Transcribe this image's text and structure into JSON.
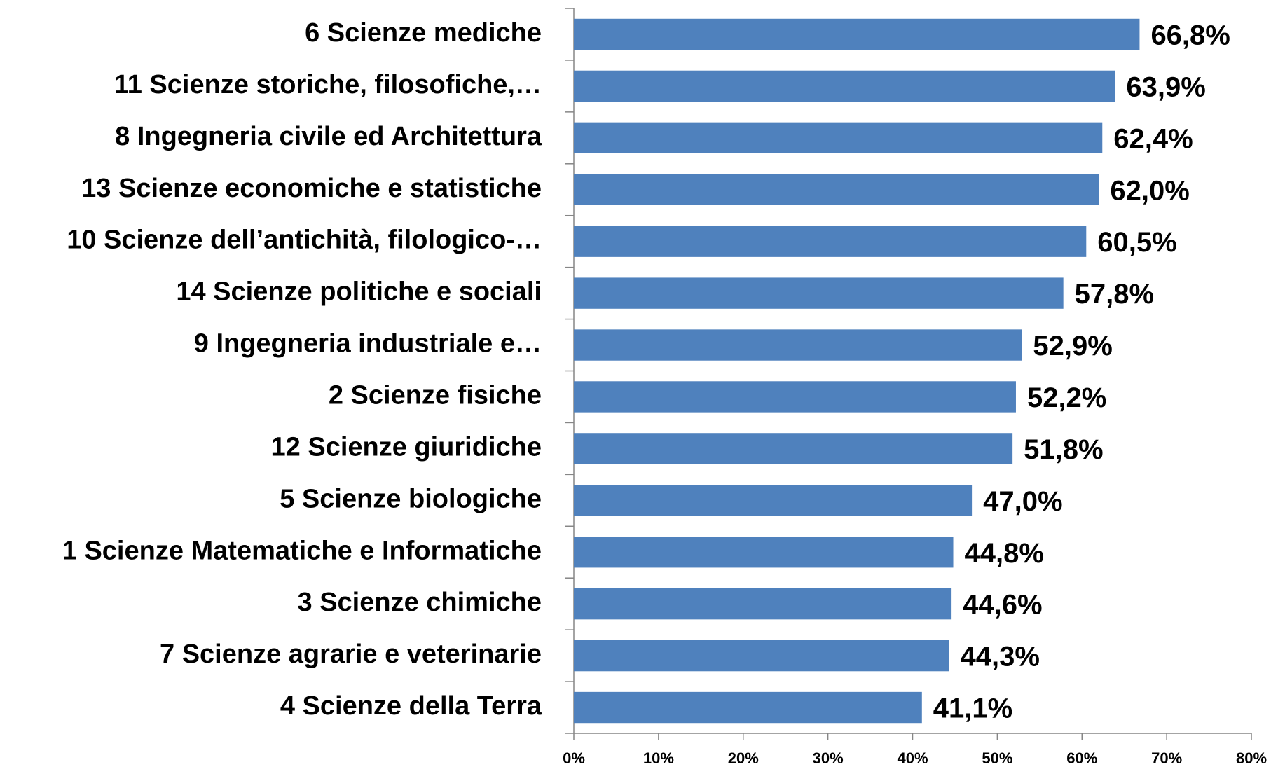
{
  "chart_data": {
    "type": "bar",
    "orientation": "horizontal",
    "categories": [
      "6 Scienze mediche",
      "11 Scienze storiche, filosofiche,…",
      "8 Ingegneria civile ed Architettura",
      "13 Scienze economiche e statistiche",
      "10 Scienze dell’antichità, filologico-…",
      "14 Scienze politiche e sociali",
      "9 Ingegneria industriale e…",
      "2 Scienze fisiche",
      "12 Scienze giuridiche",
      "5 Scienze biologiche",
      "1 Scienze Matematiche e Informatiche",
      "3 Scienze chimiche",
      "7 Scienze agrarie e veterinarie",
      "4 Scienze della Terra"
    ],
    "values": [
      66.8,
      63.9,
      62.4,
      62.0,
      60.5,
      57.8,
      52.9,
      52.2,
      51.8,
      47.0,
      44.8,
      44.6,
      44.3,
      41.1
    ],
    "value_labels": [
      "66,8%",
      "63,9%",
      "62,4%",
      "62,0%",
      "60,5%",
      "57,8%",
      "52,9%",
      "52,2%",
      "51,8%",
      "47,0%",
      "44,8%",
      "44,6%",
      "44,3%",
      "41,1%"
    ],
    "color": "#4f81bd",
    "xlim": [
      0,
      80
    ],
    "xticks": [
      {
        "value": 0,
        "label": "0%"
      },
      {
        "value": 10,
        "label": "10%"
      },
      {
        "value": 20,
        "label": "20%"
      },
      {
        "value": 30,
        "label": "30%"
      },
      {
        "value": 40,
        "label": "40%"
      },
      {
        "value": 50,
        "label": "50%"
      },
      {
        "value": 60,
        "label": "60%"
      },
      {
        "value": 70,
        "label": "70%"
      },
      {
        "value": 80,
        "label": "80%"
      }
    ],
    "grid": false
  }
}
